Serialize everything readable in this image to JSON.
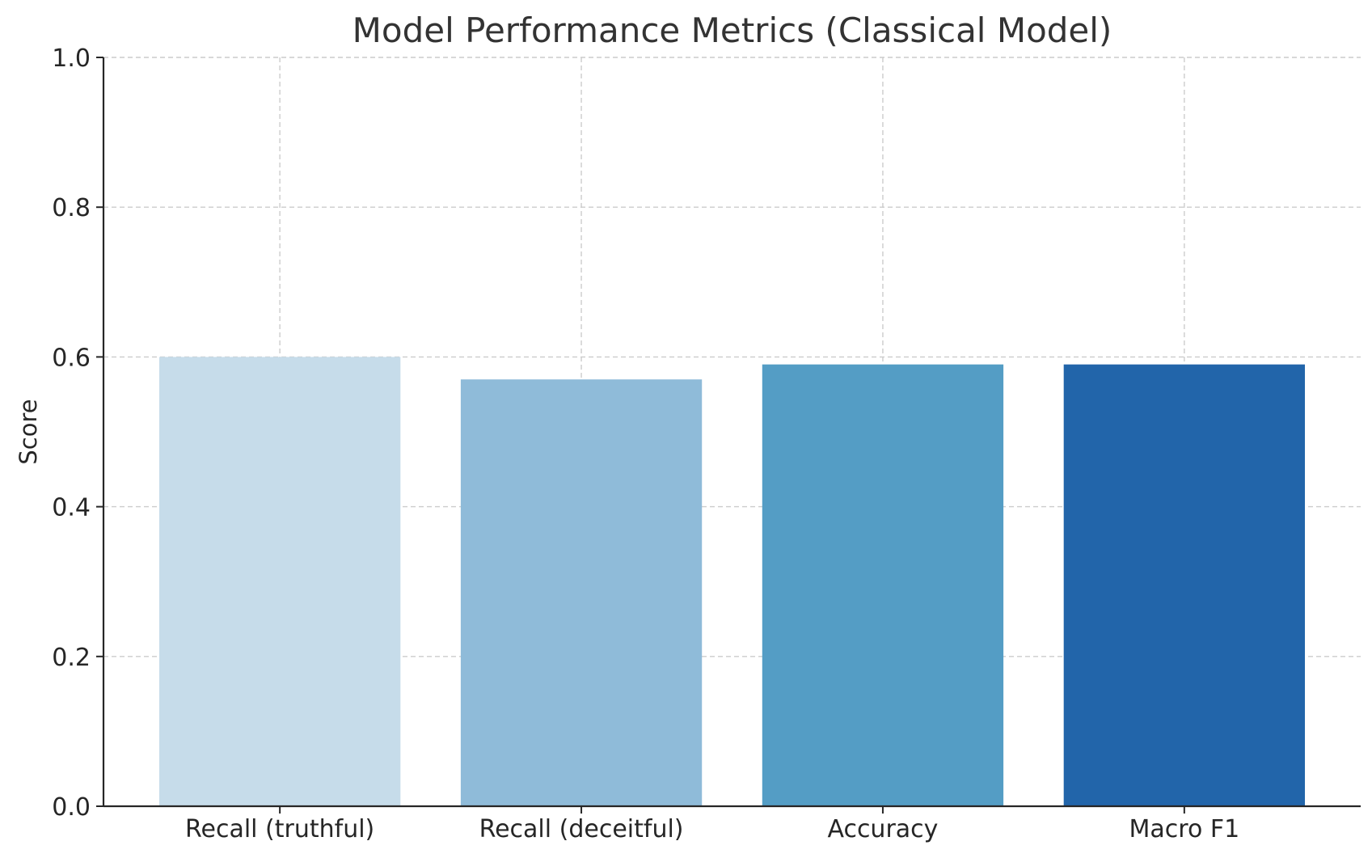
{
  "chart_data": {
    "type": "bar",
    "title": "Model Performance Metrics (Classical Model)",
    "xlabel": "",
    "ylabel": "Score",
    "categories": [
      "Recall (truthful)",
      "Recall (deceitful)",
      "Accuracy",
      "Macro F1"
    ],
    "values": [
      0.6,
      0.57,
      0.59,
      0.59
    ],
    "colors": [
      "#c6dcea",
      "#8fbbd9",
      "#549dc5",
      "#2265aa"
    ],
    "ylim": [
      0,
      1.0
    ],
    "yticks": [
      0.0,
      0.2,
      0.4,
      0.6,
      0.8,
      1.0
    ],
    "ytick_labels": [
      "0.0",
      "0.2",
      "0.4",
      "0.6",
      "0.8",
      "1.0"
    ],
    "grid": true,
    "grid_style": "dashed",
    "legend": false
  }
}
